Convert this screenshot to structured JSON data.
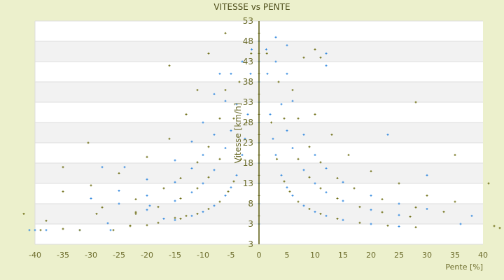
{
  "chart_data": {
    "type": "scatter",
    "title": "VITESSE vs PENTE",
    "xlabel": "Pente [%]",
    "ylabel": "Vitesse [km/h]",
    "xlim": [
      -40,
      40
    ],
    "ylim": [
      -2,
      53
    ],
    "x_ticks": [
      "-40",
      "-35",
      "-30",
      "-25",
      "-20",
      "-15",
      "-10",
      "-5",
      "0",
      "5",
      "10",
      "15",
      "20",
      "25",
      "30",
      "35",
      "40"
    ],
    "y_ticks": [
      "53",
      "48",
      "43",
      "38",
      "33",
      "28",
      "23",
      "18",
      "13",
      "8",
      "3",
      "3"
    ],
    "grid": true,
    "colors": {
      "series_blue": "#2e86de",
      "series_olive": "#6b6b10",
      "axis": "#5c5c10",
      "band": "#f2f2f2",
      "background": "#ecf0cc"
    },
    "series": [
      {
        "color": "#2e86de",
        "points": [
          [
            1.3,
            46
          ],
          [
            1.5,
            40
          ],
          [
            2,
            30
          ],
          [
            2.5,
            24
          ],
          [
            3,
            20
          ],
          [
            4,
            15
          ],
          [
            5,
            12
          ],
          [
            6,
            10
          ],
          [
            8,
            7.5
          ],
          [
            10,
            6
          ],
          [
            12,
            5
          ],
          [
            15,
            4
          ],
          [
            20,
            3
          ],
          [
            25,
            2.4
          ],
          [
            3,
            43
          ],
          [
            4,
            32.5
          ],
          [
            5,
            26
          ],
          [
            6,
            21.7
          ],
          [
            8,
            16.3
          ],
          [
            10,
            13
          ],
          [
            12,
            10.8
          ],
          [
            15,
            8.7
          ],
          [
            20,
            6.5
          ],
          [
            25,
            5.2
          ],
          [
            5,
            40
          ],
          [
            6,
            33.3
          ],
          [
            8,
            25
          ],
          [
            10,
            20
          ],
          [
            12,
            16.7
          ],
          [
            15,
            13.3
          ],
          [
            20,
            10
          ],
          [
            25,
            8
          ],
          [
            30,
            6.7
          ],
          [
            -1.3,
            46
          ],
          [
            -1.5,
            40
          ],
          [
            -2,
            30
          ],
          [
            -2.5,
            24
          ],
          [
            -3,
            20
          ],
          [
            -4,
            15
          ],
          [
            -5,
            12
          ],
          [
            -6,
            10
          ],
          [
            -8,
            7.5
          ],
          [
            -10,
            6
          ],
          [
            -12,
            5
          ],
          [
            -15,
            4
          ],
          [
            -3,
            43
          ],
          [
            -4,
            32.5
          ],
          [
            -5,
            26
          ],
          [
            -6,
            21.7
          ],
          [
            -8,
            16.3
          ],
          [
            -10,
            13
          ],
          [
            -12,
            10.8
          ],
          [
            -15,
            8.7
          ],
          [
            -20,
            6.5
          ],
          [
            -5,
            40
          ],
          [
            -6,
            33.3
          ],
          [
            -8,
            25
          ],
          [
            -10,
            20
          ],
          [
            -12,
            16.7
          ],
          [
            -15,
            13.3
          ],
          [
            -20,
            10
          ],
          [
            -25,
            8
          ],
          [
            -7,
            40
          ],
          [
            -8,
            35
          ],
          [
            -10,
            28
          ],
          [
            -12,
            23.3
          ],
          [
            -15,
            18.7
          ],
          [
            -20,
            14
          ],
          [
            -25,
            11.2
          ],
          [
            -30,
            9.3
          ],
          [
            0,
            3
          ],
          [
            0,
            8
          ],
          [
            0,
            13
          ],
          [
            0,
            18
          ],
          [
            0,
            23
          ],
          [
            0,
            28
          ],
          [
            0,
            33
          ],
          [
            0,
            38
          ],
          [
            0,
            43
          ],
          [
            0,
            48
          ],
          [
            -41,
            1.5
          ],
          [
            -40,
            1.5
          ],
          [
            -38,
            1.5
          ],
          [
            -32,
            1.5
          ],
          [
            -26.5,
            1.5
          ],
          [
            -19.5,
            7.5
          ],
          [
            -17,
            4.3
          ],
          [
            -27,
            3.2
          ],
          [
            -24,
            17
          ],
          [
            -28,
            17
          ],
          [
            3,
            49
          ],
          [
            5,
            47
          ],
          [
            12,
            45
          ],
          [
            12,
            42
          ],
          [
            23,
            25
          ],
          [
            30,
            15
          ],
          [
            36,
            3
          ],
          [
            38,
            5
          ]
        ]
      },
      {
        "color": "#6b6b10",
        "points": [
          [
            1.4,
            45
          ],
          [
            2.2,
            28
          ],
          [
            3.2,
            19
          ],
          [
            4.5,
            13.5
          ],
          [
            5.5,
            11
          ],
          [
            7,
            8.5
          ],
          [
            9,
            6.7
          ],
          [
            11,
            5.5
          ],
          [
            14,
            4.3
          ],
          [
            18,
            3.3
          ],
          [
            23,
            2.6
          ],
          [
            28,
            2.2
          ],
          [
            3.5,
            38
          ],
          [
            4.5,
            29
          ],
          [
            7,
            19
          ],
          [
            9,
            14.5
          ],
          [
            11,
            11.8
          ],
          [
            14,
            9.3
          ],
          [
            18,
            7.2
          ],
          [
            22,
            5.9
          ],
          [
            27,
            4.8
          ],
          [
            6,
            36
          ],
          [
            7,
            29
          ],
          [
            9,
            22
          ],
          [
            11,
            18.2
          ],
          [
            14,
            14.3
          ],
          [
            17,
            11.8
          ],
          [
            22,
            9.1
          ],
          [
            28,
            7.1
          ],
          [
            33,
            6
          ],
          [
            10,
            30
          ],
          [
            13,
            25
          ],
          [
            16,
            20
          ],
          [
            20,
            16
          ],
          [
            25,
            13
          ],
          [
            30,
            10
          ],
          [
            35,
            8.5
          ],
          [
            -1.4,
            45
          ],
          [
            -2.2,
            28
          ],
          [
            -3.2,
            19
          ],
          [
            -4.5,
            13.5
          ],
          [
            -5.5,
            11
          ],
          [
            -7,
            8.5
          ],
          [
            -9,
            6.7
          ],
          [
            -11,
            5.5
          ],
          [
            -14,
            4.3
          ],
          [
            -18,
            3.3
          ],
          [
            -23,
            2.6
          ],
          [
            -3.5,
            38
          ],
          [
            -4.5,
            29
          ],
          [
            -7,
            19
          ],
          [
            -9,
            14.5
          ],
          [
            -11,
            11.8
          ],
          [
            -14,
            9.3
          ],
          [
            -18,
            7.2
          ],
          [
            -22,
            5.9
          ],
          [
            -6,
            36
          ],
          [
            -7,
            29
          ],
          [
            -9,
            22
          ],
          [
            -11,
            18.2
          ],
          [
            -14,
            14.3
          ],
          [
            -17,
            11.8
          ],
          [
            -22,
            9.1
          ],
          [
            -28,
            7.1
          ],
          [
            -9,
            45
          ],
          [
            -11,
            36
          ],
          [
            -13,
            30
          ],
          [
            -16,
            24
          ],
          [
            -20,
            19.5
          ],
          [
            -25,
            15.5
          ],
          [
            -30,
            12.5
          ],
          [
            -35,
            11
          ],
          [
            0,
            5
          ],
          [
            0,
            10
          ],
          [
            0,
            15
          ],
          [
            0,
            20
          ],
          [
            0,
            25
          ],
          [
            0,
            30
          ],
          [
            0,
            35
          ],
          [
            0,
            40
          ],
          [
            0,
            45
          ],
          [
            0,
            50
          ],
          [
            -42,
            5.5
          ],
          [
            -39,
            1.5
          ],
          [
            -38,
            3.8
          ],
          [
            -35,
            1.8
          ],
          [
            -32,
            1.5
          ],
          [
            -30.5,
            23
          ],
          [
            -29,
            5.5
          ],
          [
            -26,
            1.5
          ],
          [
            -23,
            2.5
          ],
          [
            -22,
            5.5
          ],
          [
            -20,
            2.7
          ],
          [
            -15,
            4.5
          ],
          [
            -13,
            5
          ],
          [
            -35,
            17
          ],
          [
            -16,
            42
          ],
          [
            -6,
            50
          ],
          [
            8,
            44
          ],
          [
            10,
            46
          ],
          [
            11,
            44
          ],
          [
            28,
            33
          ],
          [
            35,
            20
          ],
          [
            41,
            13
          ],
          [
            42,
            2.5
          ],
          [
            43,
            2
          ]
        ]
      }
    ]
  }
}
